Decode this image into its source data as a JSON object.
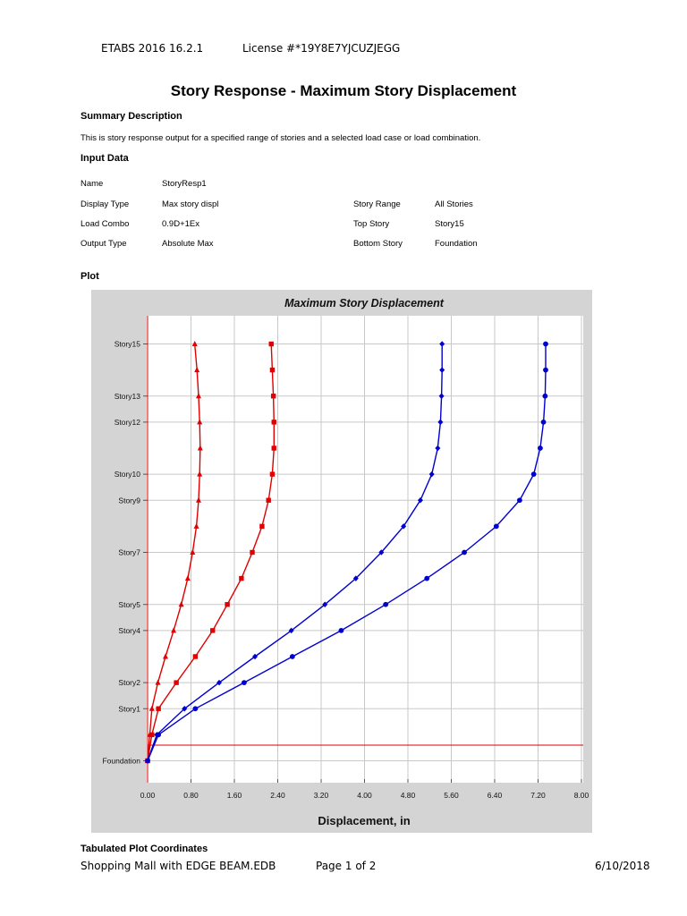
{
  "header": {
    "software": "ETABS 2016 16.2.1",
    "license": "License #*19Y8E7YJCUZJEGG"
  },
  "page_title": "Story Response - Maximum Story Displacement",
  "summary": {
    "heading": "Summary Description",
    "text": "This is story response output for a specified range of stories and a selected load case or load combination."
  },
  "input_data": {
    "heading": "Input Data",
    "name_label": "Name",
    "name_value": "StoryResp1",
    "display_type_label": "Display Type",
    "display_type_value": "Max story displ",
    "load_combo_label": "Load Combo",
    "load_combo_value": "0.9D+1Ex",
    "output_type_label": "Output Type",
    "output_type_value": "Absolute Max",
    "story_range_label": "Story Range",
    "story_range_value": "All Stories",
    "top_story_label": "Top Story",
    "top_story_value": "Story15",
    "bottom_story_label": "Bottom Story",
    "bottom_story_value": "Foundation"
  },
  "plot_heading": "Plot",
  "chart_data": {
    "type": "line",
    "title": "Maximum Story Displacement",
    "xlabel": "Displacement, in",
    "ylabel": "",
    "xlim": [
      0,
      8
    ],
    "x_ticks": [
      "0.00",
      "0.80",
      "1.60",
      "2.40",
      "3.20",
      "4.00",
      "4.80",
      "5.60",
      "6.40",
      "7.20",
      "8.00"
    ],
    "y_tick_labels": [
      "Foundation",
      "Story1",
      "Story2",
      "Story4",
      "Story5",
      "Story7",
      "Story9",
      "Story10",
      "Story12",
      "Story13",
      "Story15"
    ],
    "y_tick_levels": [
      0,
      2,
      3,
      5,
      6,
      8,
      10,
      11,
      13,
      14,
      16
    ],
    "grid": true,
    "reference_line_level": 0.6,
    "series": [
      {
        "color": "#e00000",
        "marker": "triangle",
        "levels": [
          0,
          1,
          2,
          3,
          4,
          5,
          6,
          7,
          8,
          9,
          10,
          11,
          12,
          13,
          14,
          15,
          16
        ],
        "x": [
          0.0,
          0.04,
          0.08,
          0.19,
          0.33,
          0.48,
          0.62,
          0.74,
          0.83,
          0.9,
          0.94,
          0.96,
          0.97,
          0.96,
          0.94,
          0.91,
          0.87
        ]
      },
      {
        "color": "#e00000",
        "marker": "square",
        "levels": [
          0,
          1,
          2,
          3,
          4,
          5,
          6,
          7,
          8,
          9,
          10,
          11,
          12,
          13,
          14,
          15,
          16
        ],
        "x": [
          0.0,
          0.08,
          0.2,
          0.53,
          0.88,
          1.2,
          1.47,
          1.73,
          1.93,
          2.11,
          2.23,
          2.3,
          2.33,
          2.33,
          2.32,
          2.3,
          2.28
        ]
      },
      {
        "color": "#0000d0",
        "marker": "diamond",
        "levels": [
          0,
          1,
          2,
          3,
          4,
          5,
          6,
          7,
          8,
          9,
          10,
          11,
          12,
          13,
          14,
          15,
          16
        ],
        "x": [
          0.0,
          0.17,
          0.68,
          1.32,
          1.98,
          2.65,
          3.27,
          3.84,
          4.31,
          4.72,
          5.03,
          5.24,
          5.35,
          5.4,
          5.42,
          5.43,
          5.43
        ]
      },
      {
        "color": "#0000d0",
        "marker": "circle",
        "levels": [
          0,
          1,
          2,
          3,
          4,
          5,
          6,
          7,
          8,
          9,
          10,
          11,
          12,
          13,
          14,
          15,
          16
        ],
        "x": [
          0.0,
          0.2,
          0.88,
          1.78,
          2.67,
          3.57,
          4.39,
          5.15,
          5.84,
          6.43,
          6.86,
          7.12,
          7.24,
          7.3,
          7.33,
          7.34,
          7.34
        ]
      }
    ]
  },
  "tabulated_heading": "Tabulated Plot Coordinates",
  "footer": {
    "file": "Shopping Mall with EDGE BEAM.EDB",
    "page": "Page 1 of 2",
    "date": "6/10/2018"
  }
}
